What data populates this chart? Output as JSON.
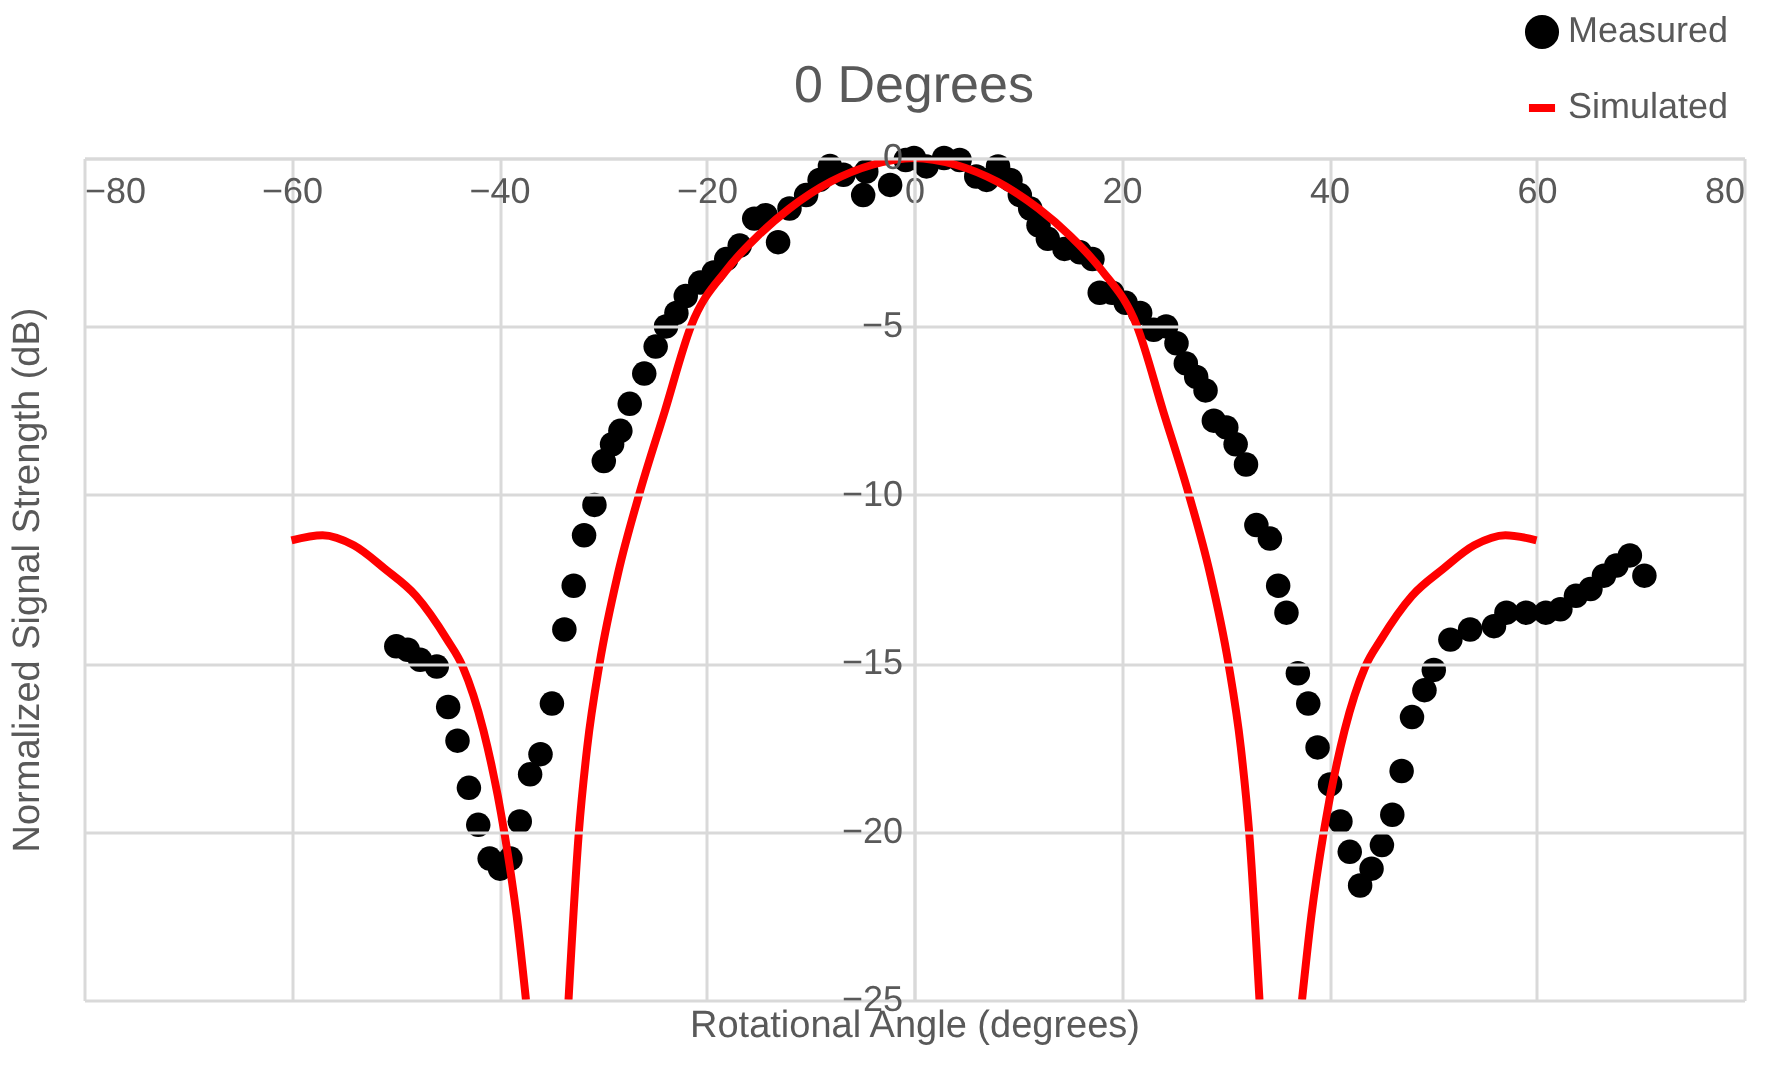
{
  "chart_data": {
    "type": "scatter",
    "title": "0 Degrees",
    "xlabel": "Rotational Angle (degrees)",
    "ylabel": "Normalized Signal Strength (dB)",
    "xlim": [
      -80,
      80
    ],
    "xticks": [
      -80,
      -60,
      -40,
      -20,
      0,
      20,
      40,
      60,
      80
    ],
    "ylim": [
      -25,
      0
    ],
    "yticks": [
      0,
      -5,
      -10,
      -15,
      -20,
      -25
    ],
    "grid": true,
    "legend": "top right",
    "series": [
      {
        "name": "Measured",
        "marker": "circle",
        "color": "#000000",
        "x": [
          -49.9,
          -48.8,
          -47.6,
          -46.0,
          -44.9,
          -44.0,
          -42.9,
          -42.0,
          -40.9,
          -39.9,
          -38.9,
          -38.0,
          -37.0,
          -36.0,
          -34.9,
          -33.7,
          -32.8,
          -31.8,
          -30.8,
          -29.9,
          -29.1,
          -28.3,
          -27.4,
          -26.0,
          -24.9,
          -23.9,
          -22.9,
          -22.0,
          -20.6,
          -19.3,
          -18.1,
          -16.8,
          -15.4,
          -14.3,
          -13.1,
          -12.0,
          -10.4,
          -9.1,
          -8.1,
          -6.8,
          -4.9,
          -4.6,
          -2.3,
          -0.8,
          0,
          1.2,
          2.9,
          4.4,
          6.0,
          7.0,
          8.1,
          9.3,
          10.2,
          11.2,
          12.0,
          12.9,
          14.5,
          16.0,
          17.2,
          17.9,
          19.1,
          20.4,
          21.8,
          23.1,
          24.3,
          25.3,
          26.2,
          27.2,
          28.1,
          28.9,
          30.1,
          31.0,
          32.0,
          33.0,
          34.3,
          35.1,
          35.9,
          37.0,
          38.0,
          38.9,
          40.1,
          41.1,
          42.0,
          43.0,
          44.1,
          45.1,
          46.1,
          47.0,
          48.0,
          49.2,
          50.1,
          51.7,
          53.6,
          55.9,
          57.1,
          59.0,
          60.9,
          62.3,
          63.8,
          65.2,
          66.5,
          67.7,
          69.0,
          70.4
        ],
        "values": [
          -14.5,
          -14.6,
          -14.9,
          -15.1,
          -16.3,
          -17.3,
          -18.7,
          -19.8,
          -20.8,
          -21.1,
          -20.8,
          -19.7,
          -18.3,
          -17.7,
          -16.2,
          -14.0,
          -12.7,
          -11.2,
          -10.3,
          -9.0,
          -8.5,
          -8.1,
          -7.3,
          -6.4,
          -5.6,
          -5.0,
          -4.6,
          -4.1,
          -3.7,
          -3.4,
          -3.0,
          -2.6,
          -1.8,
          -1.7,
          -2.5,
          -1.5,
          -1.1,
          -0.65,
          -0.24,
          -0.5,
          -1.1,
          -0.4,
          -0.8,
          -0.06,
          0,
          -0.25,
          0,
          -0.06,
          -0.55,
          -0.65,
          -0.25,
          -0.65,
          -1.1,
          -1.5,
          -2.0,
          -2.4,
          -2.7,
          -2.8,
          -3.0,
          -4.0,
          -4.0,
          -4.3,
          -4.6,
          -5.1,
          -5.0,
          -5.5,
          -6.1,
          -6.5,
          -6.9,
          -7.8,
          -8.0,
          -8.5,
          -9.1,
          -10.9,
          -11.3,
          -12.7,
          -13.5,
          -15.3,
          -16.2,
          -17.5,
          -18.6,
          -19.7,
          -20.6,
          -21.6,
          -21.1,
          -20.4,
          -19.5,
          -18.2,
          -16.6,
          -15.8,
          -15.2,
          -14.3,
          -14.0,
          -13.9,
          -13.5,
          -13.5,
          -13.5,
          -13.4,
          -13.0,
          -12.8,
          -12.4,
          -12.1,
          -11.8,
          -12.4
        ]
      },
      {
        "name": "Simulated",
        "type": "line",
        "marker": "none",
        "color": "#ff0000",
        "x": [
          -60,
          -57,
          -54,
          -51,
          -48,
          -45,
          -43.5,
          -41.5,
          -39.5,
          -38.3,
          -37.4,
          -35.3,
          -33.3,
          -32.3,
          -31.5,
          -30.3,
          -28.5,
          -26.5,
          -24,
          -21.5,
          -18,
          -15,
          -12,
          -8,
          -4,
          0,
          4,
          8,
          12,
          15,
          18,
          21.5,
          24,
          26.5,
          28.5,
          30.3,
          31.5,
          32.3,
          33.3,
          35.3,
          37.4,
          38.3,
          39.5,
          41.5,
          43.5,
          45,
          48,
          51,
          54,
          57,
          60
        ],
        "values": [
          -11.35,
          -11.2,
          -11.5,
          -12.2,
          -13.0,
          -14.3,
          -15.1,
          -17,
          -20,
          -22.5,
          -25,
          null,
          -25,
          -20,
          -17.5,
          -15,
          -12.3,
          -10,
          -7.5,
          -5,
          -3.3,
          -2.3,
          -1.5,
          -0.7,
          -0.2,
          0,
          -0.2,
          -0.7,
          -1.5,
          -2.3,
          -3.3,
          -5,
          -7.5,
          -10,
          -12.3,
          -15,
          -17.5,
          -20,
          -25,
          null,
          -25,
          -22.5,
          -20,
          -17,
          -15.1,
          -14.3,
          -13.0,
          -12.2,
          -11.5,
          -11.2,
          -11.35
        ]
      }
    ]
  }
}
